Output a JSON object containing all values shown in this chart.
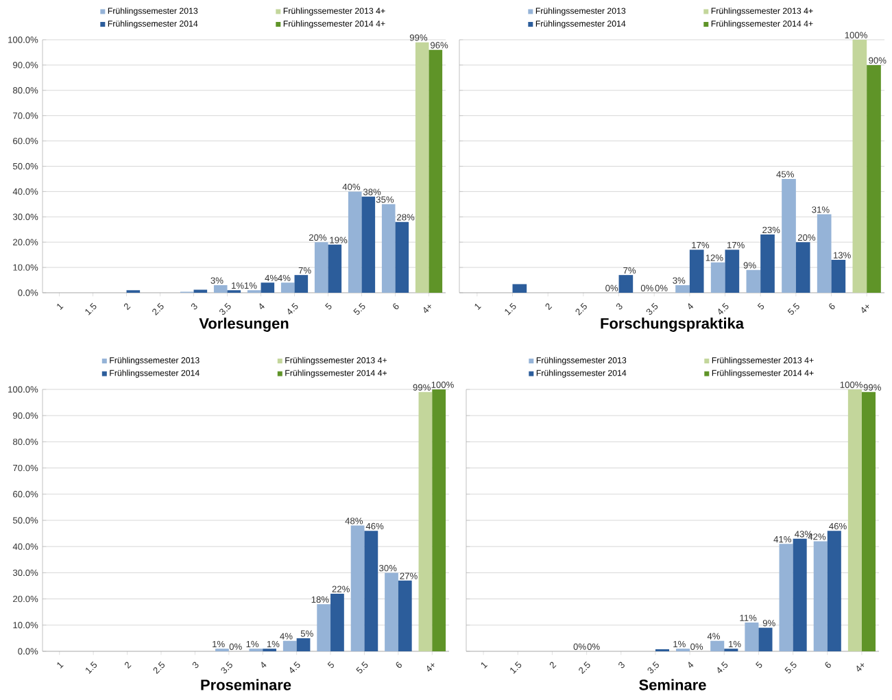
{
  "chart_data": [
    {
      "type": "bar",
      "title": "Vorlesungen",
      "categories": [
        "1",
        "1.5",
        "2",
        "2.5",
        "3",
        "3.5",
        "4",
        "4.5",
        "5",
        "5.5",
        "6",
        "4+"
      ],
      "series": [
        {
          "name": "Frühlingssemester 2013",
          "color": "#95b3d7",
          "values": [
            0,
            0,
            0,
            0,
            0.4,
            3,
            1,
            4,
            20,
            40,
            35,
            null
          ],
          "value_labels": [
            null,
            null,
            null,
            null,
            null,
            "3%",
            "1%",
            "4%",
            "20%",
            "40%",
            "35%",
            null
          ]
        },
        {
          "name": "Frühlingssemester 2014",
          "color": "#2c5d9b",
          "values": [
            0,
            0,
            1,
            0,
            1.2,
            1,
            4,
            7,
            19,
            38,
            28,
            null
          ],
          "value_labels": [
            null,
            null,
            null,
            null,
            null,
            "1%",
            "4%",
            "7%",
            "19%",
            "38%",
            "28%",
            null
          ]
        },
        {
          "name": "Frühlingssemester 2013 4+",
          "color": "#c3d69b",
          "values": [
            null,
            null,
            null,
            null,
            null,
            null,
            null,
            null,
            null,
            null,
            null,
            99
          ],
          "value_labels": [
            null,
            null,
            null,
            null,
            null,
            null,
            null,
            null,
            null,
            null,
            null,
            "99%"
          ]
        },
        {
          "name": "Frühlingssemester 2014 4+",
          "color": "#5f9428",
          "values": [
            null,
            null,
            null,
            null,
            null,
            null,
            null,
            null,
            null,
            null,
            null,
            96
          ],
          "value_labels": [
            null,
            null,
            null,
            null,
            null,
            null,
            null,
            null,
            null,
            null,
            null,
            "96%"
          ]
        }
      ],
      "ylim": [
        0,
        100
      ],
      "yticks": [
        {
          "value": 0,
          "label": "0.0%"
        },
        {
          "value": 10,
          "label": "10.0%"
        },
        {
          "value": 20,
          "label": "20.0%"
        },
        {
          "value": 30,
          "label": "30.0%"
        },
        {
          "value": 40,
          "label": "40.0%"
        },
        {
          "value": 50,
          "label": "50.0%"
        },
        {
          "value": 60,
          "label": "60.0%"
        },
        {
          "value": 70,
          "label": "70.0%"
        },
        {
          "value": 80,
          "label": "80.0%"
        },
        {
          "value": 90,
          "label": "90.0%"
        },
        {
          "value": 100,
          "label": "100.0%"
        }
      ],
      "grid": "y",
      "legend": "top"
    },
    {
      "type": "bar",
      "title": "Forschungspraktika",
      "categories": [
        "1",
        "1.5",
        "2",
        "2.5",
        "3",
        "3.5",
        "4",
        "4.5",
        "5",
        "5.5",
        "6",
        "4+"
      ],
      "series": [
        {
          "name": "Frühlingssemester 2013",
          "color": "#95b3d7",
          "values": [
            0,
            0,
            0,
            0,
            0,
            0,
            3,
            12,
            9,
            45,
            31,
            null
          ],
          "value_labels": [
            null,
            null,
            null,
            null,
            "0%",
            "0%",
            "3%",
            "12%",
            "9%",
            "45%",
            "31%",
            null
          ]
        },
        {
          "name": "Frühlingssemester 2014",
          "color": "#2c5d9b",
          "values": [
            0,
            3.4,
            0,
            0,
            7,
            0,
            17,
            17,
            23,
            20,
            13,
            null
          ],
          "value_labels": [
            null,
            null,
            null,
            null,
            "7%",
            "0%",
            "17%",
            "17%",
            "23%",
            "20%",
            "13%",
            null
          ]
        },
        {
          "name": "Frühlingssemester 2013 4+",
          "color": "#c3d69b",
          "values": [
            null,
            null,
            null,
            null,
            null,
            null,
            null,
            null,
            null,
            null,
            null,
            100
          ],
          "value_labels": [
            null,
            null,
            null,
            null,
            null,
            null,
            null,
            null,
            null,
            null,
            null,
            "100%"
          ]
        },
        {
          "name": "Frühlingssemester 2014 4+",
          "color": "#5f9428",
          "values": [
            null,
            null,
            null,
            null,
            null,
            null,
            null,
            null,
            null,
            null,
            null,
            90
          ],
          "value_labels": [
            null,
            null,
            null,
            null,
            null,
            null,
            null,
            null,
            null,
            null,
            null,
            "90%"
          ]
        }
      ],
      "ylim": [
        0,
        100
      ],
      "yticks": [
        0,
        10,
        20,
        30,
        40,
        50,
        60,
        70,
        80,
        90,
        100
      ],
      "grid": "y",
      "legend": "top",
      "tick_labels": "x"
    },
    {
      "type": "bar",
      "title": "Proseminare",
      "categories": [
        "1",
        "1.5",
        "2",
        "2.5",
        "3",
        "3.5",
        "4",
        "4.5",
        "5",
        "5.5",
        "6",
        "4+"
      ],
      "series": [
        {
          "name": "Frühlingssemester 2013",
          "color": "#95b3d7",
          "values": [
            0,
            0,
            0,
            0,
            0,
            1,
            1,
            4,
            18,
            48,
            30,
            null
          ],
          "value_labels": [
            null,
            null,
            null,
            null,
            null,
            "1%",
            "1%",
            "4%",
            "18%",
            "48%",
            "30%",
            null
          ]
        },
        {
          "name": "Frühlingssemester 2014",
          "color": "#2c5d9b",
          "values": [
            0,
            0,
            0,
            0,
            0,
            0,
            1,
            5,
            22,
            46,
            27,
            null
          ],
          "value_labels": [
            null,
            null,
            null,
            null,
            null,
            "0%",
            "1%",
            "5%",
            "22%",
            "46%",
            "27%",
            null
          ]
        },
        {
          "name": "Frühlingssemester 2013 4+",
          "color": "#c3d69b",
          "values": [
            null,
            null,
            null,
            null,
            null,
            null,
            null,
            null,
            null,
            null,
            null,
            99
          ],
          "value_labels": [
            null,
            null,
            null,
            null,
            null,
            null,
            null,
            null,
            null,
            null,
            null,
            "99%"
          ]
        },
        {
          "name": "Frühlingssemester 2014 4+",
          "color": "#5f9428",
          "values": [
            null,
            null,
            null,
            null,
            null,
            null,
            null,
            null,
            null,
            null,
            null,
            100
          ],
          "value_labels": [
            null,
            null,
            null,
            null,
            null,
            null,
            null,
            null,
            null,
            null,
            null,
            "100%"
          ]
        }
      ],
      "ylim": [
        0,
        100
      ],
      "yticks": [
        {
          "value": 0,
          "label": "0.0%"
        },
        {
          "value": 10,
          "label": "10.0%"
        },
        {
          "value": 20,
          "label": "20.0%"
        },
        {
          "value": 30,
          "label": "30.0%"
        },
        {
          "value": 40,
          "label": "40.0%"
        },
        {
          "value": 50,
          "label": "50.0%"
        },
        {
          "value": 60,
          "label": "60.0%"
        },
        {
          "value": 70,
          "label": "70.0%"
        },
        {
          "value": 80,
          "label": "80.0%"
        },
        {
          "value": 90,
          "label": "90.0%"
        },
        {
          "value": 100,
          "label": "100.0%"
        }
      ],
      "grid": "y",
      "legend": "top"
    },
    {
      "type": "bar",
      "title": "Seminare",
      "categories": [
        "1",
        "1.5",
        "2",
        "2.5",
        "3",
        "3.5",
        "4",
        "4.5",
        "5",
        "5.5",
        "6",
        "4+"
      ],
      "series": [
        {
          "name": "Frühlingssemester 2013",
          "color": "#95b3d7",
          "values": [
            0,
            0,
            0,
            0,
            0,
            0,
            1,
            4,
            11,
            41,
            42,
            null
          ],
          "value_labels": [
            null,
            null,
            null,
            "0%",
            null,
            null,
            "1%",
            "4%",
            "11%",
            "41%",
            "42%",
            null
          ]
        },
        {
          "name": "Frühlingssemester 2014",
          "color": "#2c5d9b",
          "values": [
            0,
            0,
            0,
            0,
            0,
            0.8,
            0,
            1,
            9,
            43,
            46,
            null
          ],
          "value_labels": [
            null,
            null,
            null,
            "0%",
            null,
            null,
            "0%",
            "1%",
            "9%",
            "43%",
            "46%",
            null
          ]
        },
        {
          "name": "Frühlingssemester 2013 4+",
          "color": "#c3d69b",
          "values": [
            null,
            null,
            null,
            null,
            null,
            null,
            null,
            null,
            null,
            null,
            null,
            100
          ],
          "value_labels": [
            null,
            null,
            null,
            null,
            null,
            null,
            null,
            null,
            null,
            null,
            null,
            "100%"
          ]
        },
        {
          "name": "Frühlingssemester 2014 4+",
          "color": "#5f9428",
          "values": [
            null,
            null,
            null,
            null,
            null,
            null,
            null,
            null,
            null,
            null,
            null,
            99
          ],
          "value_labels": [
            null,
            null,
            null,
            null,
            null,
            null,
            null,
            null,
            null,
            null,
            null,
            "99%"
          ]
        }
      ],
      "ylim": [
        0,
        100
      ],
      "yticks": [
        0,
        10,
        20,
        30,
        40,
        50,
        60,
        70,
        80,
        90,
        100
      ],
      "grid": "y",
      "legend": "top",
      "tick_labels": "x"
    }
  ]
}
